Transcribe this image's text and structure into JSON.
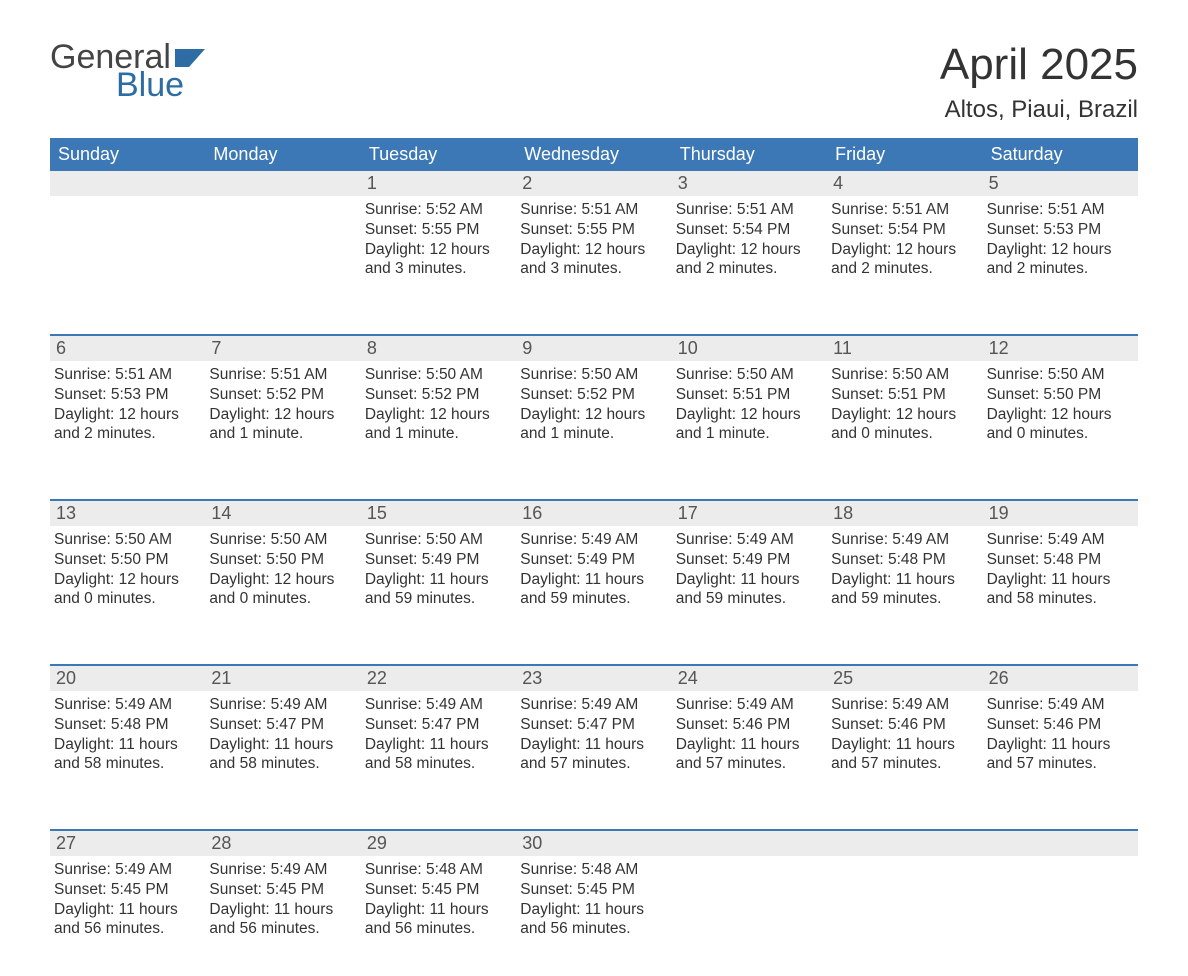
{
  "logo": {
    "text1": "General",
    "text2": "Blue",
    "color1": "#444444",
    "color2": "#2e6da4"
  },
  "title": "April 2025",
  "location": "Altos, Piaui, Brazil",
  "weekday_header": {
    "bg": "#3b78b5",
    "fg": "#ffffff"
  },
  "daynum_bg": "#ececec",
  "week_border": "#3b78b5",
  "weekdays": [
    "Sunday",
    "Monday",
    "Tuesday",
    "Wednesday",
    "Thursday",
    "Friday",
    "Saturday"
  ],
  "weeks": [
    [
      null,
      null,
      {
        "n": "1",
        "sr": "5:52 AM",
        "ss": "5:55 PM",
        "dl": "12 hours and 3 minutes."
      },
      {
        "n": "2",
        "sr": "5:51 AM",
        "ss": "5:55 PM",
        "dl": "12 hours and 3 minutes."
      },
      {
        "n": "3",
        "sr": "5:51 AM",
        "ss": "5:54 PM",
        "dl": "12 hours and 2 minutes."
      },
      {
        "n": "4",
        "sr": "5:51 AM",
        "ss": "5:54 PM",
        "dl": "12 hours and 2 minutes."
      },
      {
        "n": "5",
        "sr": "5:51 AM",
        "ss": "5:53 PM",
        "dl": "12 hours and 2 minutes."
      }
    ],
    [
      {
        "n": "6",
        "sr": "5:51 AM",
        "ss": "5:53 PM",
        "dl": "12 hours and 2 minutes."
      },
      {
        "n": "7",
        "sr": "5:51 AM",
        "ss": "5:52 PM",
        "dl": "12 hours and 1 minute."
      },
      {
        "n": "8",
        "sr": "5:50 AM",
        "ss": "5:52 PM",
        "dl": "12 hours and 1 minute."
      },
      {
        "n": "9",
        "sr": "5:50 AM",
        "ss": "5:52 PM",
        "dl": "12 hours and 1 minute."
      },
      {
        "n": "10",
        "sr": "5:50 AM",
        "ss": "5:51 PM",
        "dl": "12 hours and 1 minute."
      },
      {
        "n": "11",
        "sr": "5:50 AM",
        "ss": "5:51 PM",
        "dl": "12 hours and 0 minutes."
      },
      {
        "n": "12",
        "sr": "5:50 AM",
        "ss": "5:50 PM",
        "dl": "12 hours and 0 minutes."
      }
    ],
    [
      {
        "n": "13",
        "sr": "5:50 AM",
        "ss": "5:50 PM",
        "dl": "12 hours and 0 minutes."
      },
      {
        "n": "14",
        "sr": "5:50 AM",
        "ss": "5:50 PM",
        "dl": "12 hours and 0 minutes."
      },
      {
        "n": "15",
        "sr": "5:50 AM",
        "ss": "5:49 PM",
        "dl": "11 hours and 59 minutes."
      },
      {
        "n": "16",
        "sr": "5:49 AM",
        "ss": "5:49 PM",
        "dl": "11 hours and 59 minutes."
      },
      {
        "n": "17",
        "sr": "5:49 AM",
        "ss": "5:49 PM",
        "dl": "11 hours and 59 minutes."
      },
      {
        "n": "18",
        "sr": "5:49 AM",
        "ss": "5:48 PM",
        "dl": "11 hours and 59 minutes."
      },
      {
        "n": "19",
        "sr": "5:49 AM",
        "ss": "5:48 PM",
        "dl": "11 hours and 58 minutes."
      }
    ],
    [
      {
        "n": "20",
        "sr": "5:49 AM",
        "ss": "5:48 PM",
        "dl": "11 hours and 58 minutes."
      },
      {
        "n": "21",
        "sr": "5:49 AM",
        "ss": "5:47 PM",
        "dl": "11 hours and 58 minutes."
      },
      {
        "n": "22",
        "sr": "5:49 AM",
        "ss": "5:47 PM",
        "dl": "11 hours and 58 minutes."
      },
      {
        "n": "23",
        "sr": "5:49 AM",
        "ss": "5:47 PM",
        "dl": "11 hours and 57 minutes."
      },
      {
        "n": "24",
        "sr": "5:49 AM",
        "ss": "5:46 PM",
        "dl": "11 hours and 57 minutes."
      },
      {
        "n": "25",
        "sr": "5:49 AM",
        "ss": "5:46 PM",
        "dl": "11 hours and 57 minutes."
      },
      {
        "n": "26",
        "sr": "5:49 AM",
        "ss": "5:46 PM",
        "dl": "11 hours and 57 minutes."
      }
    ],
    [
      {
        "n": "27",
        "sr": "5:49 AM",
        "ss": "5:45 PM",
        "dl": "11 hours and 56 minutes."
      },
      {
        "n": "28",
        "sr": "5:49 AM",
        "ss": "5:45 PM",
        "dl": "11 hours and 56 minutes."
      },
      {
        "n": "29",
        "sr": "5:48 AM",
        "ss": "5:45 PM",
        "dl": "11 hours and 56 minutes."
      },
      {
        "n": "30",
        "sr": "5:48 AM",
        "ss": "5:45 PM",
        "dl": "11 hours and 56 minutes."
      },
      null,
      null,
      null
    ]
  ],
  "labels": {
    "sunrise": "Sunrise: ",
    "sunset": "Sunset: ",
    "daylight": "Daylight: "
  }
}
